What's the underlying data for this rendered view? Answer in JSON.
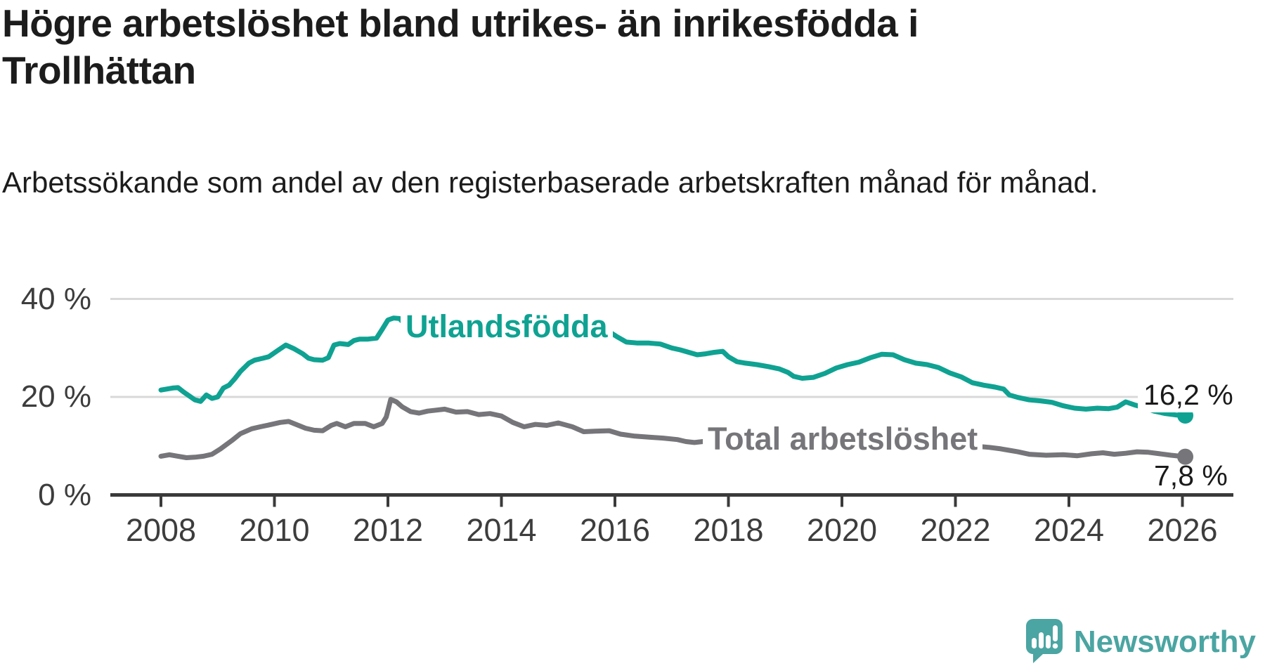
{
  "header": {
    "title": "Högre arbetslöshet bland utrikes- än inrikesfödda i Trollhättan",
    "subtitle": "Arbetssökande som andel av den registerbaserade arbetskraften månad för månad."
  },
  "footer": {
    "brand": "Newsworthy"
  },
  "colors": {
    "teal_series": "#0fa292",
    "gray_series": "#76767a",
    "axis": "#3a3a3a",
    "tick_text": "#3d3d3d",
    "grid": "#d9d9d9",
    "text": "#1c1c1c",
    "brand_teal": "#4ba5a2",
    "background": "#ffffff"
  },
  "chart_data": {
    "type": "line",
    "title": "Högre arbetslöshet bland utrikes- än inrikesfödda i Trollhättan",
    "subtitle": "Arbetssökande som andel av den registerbaserade arbetskraften månad för månad.",
    "xlabel": "",
    "ylabel": "",
    "x_axis": {
      "range": [
        2007.15,
        2027.0
      ],
      "ticks": [
        2008,
        2010,
        2012,
        2014,
        2016,
        2018,
        2020,
        2022,
        2024,
        2026
      ],
      "tick_labels": [
        "2008",
        "2010",
        "2012",
        "2014",
        "2016",
        "2018",
        "2020",
        "2022",
        "2024",
        "2026"
      ]
    },
    "y_axis": {
      "range": [
        0,
        42
      ],
      "unit": "%",
      "ticks": [
        {
          "value": 0,
          "label": "0 %"
        },
        {
          "value": 20,
          "label": "20 %"
        },
        {
          "value": 40,
          "label": "40 %"
        }
      ],
      "gridlines_at": [
        20,
        40
      ]
    },
    "legend_position": "inline-labels-on-lines",
    "series": [
      {
        "name": "Utlandsfödda",
        "color": "#0fa292",
        "end_label": "16,2 %",
        "end_value": 16.2,
        "points": [
          [
            2008.0,
            21.4
          ],
          [
            2008.1,
            21.6
          ],
          [
            2008.2,
            21.8
          ],
          [
            2008.3,
            21.9
          ],
          [
            2008.4,
            21.0
          ],
          [
            2008.5,
            20.2
          ],
          [
            2008.6,
            19.4
          ],
          [
            2008.7,
            19.1
          ],
          [
            2008.8,
            20.4
          ],
          [
            2008.9,
            19.7
          ],
          [
            2009.0,
            20.0
          ],
          [
            2009.1,
            21.8
          ],
          [
            2009.2,
            22.4
          ],
          [
            2009.3,
            23.7
          ],
          [
            2009.4,
            25.2
          ],
          [
            2009.55,
            26.9
          ],
          [
            2009.65,
            27.5
          ],
          [
            2009.8,
            27.9
          ],
          [
            2009.9,
            28.2
          ],
          [
            2010.05,
            29.4
          ],
          [
            2010.2,
            30.6
          ],
          [
            2010.35,
            29.8
          ],
          [
            2010.5,
            28.8
          ],
          [
            2010.6,
            27.9
          ],
          [
            2010.7,
            27.6
          ],
          [
            2010.85,
            27.5
          ],
          [
            2010.95,
            28.0
          ],
          [
            2011.05,
            30.6
          ],
          [
            2011.15,
            30.9
          ],
          [
            2011.3,
            30.7
          ],
          [
            2011.4,
            31.5
          ],
          [
            2011.5,
            31.8
          ],
          [
            2011.65,
            31.8
          ],
          [
            2011.8,
            32.0
          ],
          [
            2011.9,
            33.8
          ],
          [
            2012.0,
            35.7
          ],
          [
            2012.1,
            36.1
          ],
          [
            2012.2,
            36.0
          ],
          [
            2012.3,
            34.9
          ],
          [
            2012.4,
            35.0
          ],
          [
            2012.55,
            34.8
          ],
          [
            2012.7,
            34.7
          ],
          [
            2012.85,
            34.5
          ],
          [
            2013.0,
            34.4
          ],
          [
            2013.25,
            34.2
          ],
          [
            2013.5,
            34.3
          ],
          [
            2013.75,
            34.0
          ],
          [
            2014.0,
            33.9
          ],
          [
            2014.25,
            33.7
          ],
          [
            2014.5,
            33.8
          ],
          [
            2014.75,
            33.5
          ],
          [
            2015.0,
            33.4
          ],
          [
            2015.25,
            33.5
          ],
          [
            2015.5,
            33.3
          ],
          [
            2015.7,
            33.4
          ],
          [
            2015.9,
            33.3
          ],
          [
            2016.05,
            32.2
          ],
          [
            2016.2,
            31.2
          ],
          [
            2016.4,
            31.0
          ],
          [
            2016.6,
            31.0
          ],
          [
            2016.8,
            30.8
          ],
          [
            2017.0,
            30.0
          ],
          [
            2017.15,
            29.6
          ],
          [
            2017.3,
            29.1
          ],
          [
            2017.45,
            28.6
          ],
          [
            2017.6,
            28.8
          ],
          [
            2017.75,
            29.1
          ],
          [
            2017.9,
            29.3
          ],
          [
            2018.0,
            28.2
          ],
          [
            2018.15,
            27.2
          ],
          [
            2018.3,
            26.9
          ],
          [
            2018.5,
            26.6
          ],
          [
            2018.7,
            26.2
          ],
          [
            2018.9,
            25.7
          ],
          [
            2019.05,
            25.0
          ],
          [
            2019.15,
            24.2
          ],
          [
            2019.3,
            23.8
          ],
          [
            2019.5,
            24.0
          ],
          [
            2019.7,
            24.8
          ],
          [
            2019.9,
            25.9
          ],
          [
            2020.1,
            26.6
          ],
          [
            2020.3,
            27.1
          ],
          [
            2020.5,
            28.0
          ],
          [
            2020.7,
            28.7
          ],
          [
            2020.9,
            28.6
          ],
          [
            2021.1,
            27.6
          ],
          [
            2021.3,
            26.9
          ],
          [
            2021.5,
            26.6
          ],
          [
            2021.7,
            26.0
          ],
          [
            2021.9,
            24.9
          ],
          [
            2022.1,
            24.1
          ],
          [
            2022.3,
            22.9
          ],
          [
            2022.5,
            22.4
          ],
          [
            2022.7,
            22.0
          ],
          [
            2022.85,
            21.6
          ],
          [
            2022.95,
            20.4
          ],
          [
            2023.1,
            19.9
          ],
          [
            2023.3,
            19.4
          ],
          [
            2023.5,
            19.2
          ],
          [
            2023.7,
            18.9
          ],
          [
            2023.9,
            18.2
          ],
          [
            2024.1,
            17.7
          ],
          [
            2024.3,
            17.5
          ],
          [
            2024.5,
            17.7
          ],
          [
            2024.7,
            17.6
          ],
          [
            2024.85,
            17.9
          ],
          [
            2025.0,
            19.0
          ],
          [
            2025.15,
            18.4
          ],
          [
            2025.3,
            17.9
          ],
          [
            2025.5,
            17.1
          ],
          [
            2025.7,
            16.6
          ],
          [
            2025.9,
            16.3
          ],
          [
            2026.05,
            16.2
          ]
        ]
      },
      {
        "name": "Total arbetslöshet",
        "color": "#76767a",
        "end_label": "7,8 %",
        "end_value": 7.8,
        "points": [
          [
            2008.0,
            7.9
          ],
          [
            2008.15,
            8.2
          ],
          [
            2008.3,
            7.9
          ],
          [
            2008.45,
            7.6
          ],
          [
            2008.6,
            7.7
          ],
          [
            2008.75,
            7.9
          ],
          [
            2008.9,
            8.3
          ],
          [
            2009.05,
            9.4
          ],
          [
            2009.25,
            11.1
          ],
          [
            2009.4,
            12.5
          ],
          [
            2009.6,
            13.5
          ],
          [
            2009.75,
            13.9
          ],
          [
            2009.95,
            14.4
          ],
          [
            2010.1,
            14.8
          ],
          [
            2010.25,
            15.0
          ],
          [
            2010.4,
            14.3
          ],
          [
            2010.55,
            13.6
          ],
          [
            2010.7,
            13.2
          ],
          [
            2010.85,
            13.1
          ],
          [
            2011.0,
            14.2
          ],
          [
            2011.1,
            14.6
          ],
          [
            2011.25,
            13.9
          ],
          [
            2011.4,
            14.6
          ],
          [
            2011.6,
            14.6
          ],
          [
            2011.75,
            13.9
          ],
          [
            2011.9,
            14.6
          ],
          [
            2011.97,
            15.9
          ],
          [
            2012.05,
            19.5
          ],
          [
            2012.15,
            19.0
          ],
          [
            2012.25,
            18.0
          ],
          [
            2012.4,
            17.0
          ],
          [
            2012.55,
            16.7
          ],
          [
            2012.7,
            17.1
          ],
          [
            2012.85,
            17.3
          ],
          [
            2013.0,
            17.5
          ],
          [
            2013.2,
            16.9
          ],
          [
            2013.4,
            17.0
          ],
          [
            2013.6,
            16.4
          ],
          [
            2013.8,
            16.6
          ],
          [
            2014.0,
            16.1
          ],
          [
            2014.2,
            14.8
          ],
          [
            2014.4,
            13.9
          ],
          [
            2014.6,
            14.4
          ],
          [
            2014.8,
            14.2
          ],
          [
            2015.0,
            14.7
          ],
          [
            2015.25,
            13.9
          ],
          [
            2015.45,
            12.9
          ],
          [
            2015.65,
            13.0
          ],
          [
            2015.9,
            13.1
          ],
          [
            2016.1,
            12.4
          ],
          [
            2016.35,
            12.0
          ],
          [
            2016.6,
            11.8
          ],
          [
            2016.85,
            11.6
          ],
          [
            2017.1,
            11.3
          ],
          [
            2017.25,
            10.9
          ],
          [
            2017.4,
            10.7
          ],
          [
            2017.55,
            10.9
          ],
          [
            2017.7,
            10.5
          ],
          [
            2018.0,
            10.4
          ],
          [
            2018.5,
            10.3
          ],
          [
            2019.0,
            10.2
          ],
          [
            2019.5,
            10.1
          ],
          [
            2020.0,
            10.2
          ],
          [
            2020.5,
            10.3
          ],
          [
            2021.0,
            10.2
          ],
          [
            2021.5,
            10.1
          ],
          [
            2022.0,
            10.0
          ],
          [
            2022.4,
            9.9
          ],
          [
            2022.6,
            9.7
          ],
          [
            2022.8,
            9.4
          ],
          [
            2022.95,
            9.1
          ],
          [
            2023.1,
            8.8
          ],
          [
            2023.3,
            8.3
          ],
          [
            2023.6,
            8.1
          ],
          [
            2023.9,
            8.2
          ],
          [
            2024.15,
            8.0
          ],
          [
            2024.4,
            8.4
          ],
          [
            2024.6,
            8.6
          ],
          [
            2024.8,
            8.3
          ],
          [
            2025.0,
            8.5
          ],
          [
            2025.2,
            8.8
          ],
          [
            2025.4,
            8.7
          ],
          [
            2025.6,
            8.4
          ],
          [
            2025.8,
            8.1
          ],
          [
            2026.05,
            7.8
          ]
        ]
      }
    ]
  }
}
